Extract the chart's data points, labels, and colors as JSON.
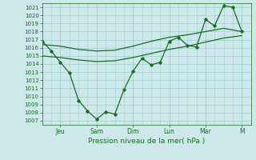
{
  "xlabel": "Pression niveau de la mer( hPa )",
  "ylim": [
    1006.5,
    1021.5
  ],
  "yticks": [
    1007,
    1008,
    1009,
    1010,
    1011,
    1012,
    1013,
    1014,
    1015,
    1016,
    1017,
    1018,
    1019,
    1020,
    1021
  ],
  "xtick_labels": [
    "Jeu",
    "Sam",
    "Dim",
    "Lun",
    "Mar",
    "M"
  ],
  "xtick_positions": [
    2,
    6,
    10,
    14,
    18,
    22
  ],
  "xlim": [
    0,
    23
  ],
  "bg_color": "#cce8e8",
  "line_color": "#1a6b2a",
  "grid_color": "#9fcfcf",
  "zigzag_x": [
    0,
    1,
    2,
    3,
    4,
    5,
    6,
    7,
    8,
    9,
    10,
    11,
    12,
    13,
    14,
    15,
    16,
    17,
    18,
    19,
    20,
    21,
    22
  ],
  "zigzag_y": [
    1016.8,
    1015.6,
    1014.2,
    1012.9,
    1009.5,
    1008.2,
    1007.2,
    1008.1,
    1007.8,
    1010.8,
    1013.1,
    1014.7,
    1013.9,
    1014.2,
    1016.8,
    1017.3,
    1016.3,
    1016.1,
    1019.5,
    1018.7,
    1021.2,
    1021.0,
    1018.0
  ],
  "upper_x": [
    0,
    2,
    4,
    6,
    8,
    10,
    12,
    14,
    16,
    18,
    20,
    22
  ],
  "upper_y": [
    1016.4,
    1016.2,
    1015.8,
    1015.6,
    1015.7,
    1016.2,
    1016.8,
    1017.3,
    1017.6,
    1018.0,
    1018.4,
    1018.0
  ],
  "lower_x": [
    0,
    2,
    4,
    6,
    8,
    10,
    12,
    14,
    16,
    18,
    20,
    22
  ],
  "lower_y": [
    1015.0,
    1014.8,
    1014.5,
    1014.3,
    1014.4,
    1014.8,
    1015.3,
    1015.8,
    1016.2,
    1016.7,
    1017.2,
    1017.5
  ]
}
